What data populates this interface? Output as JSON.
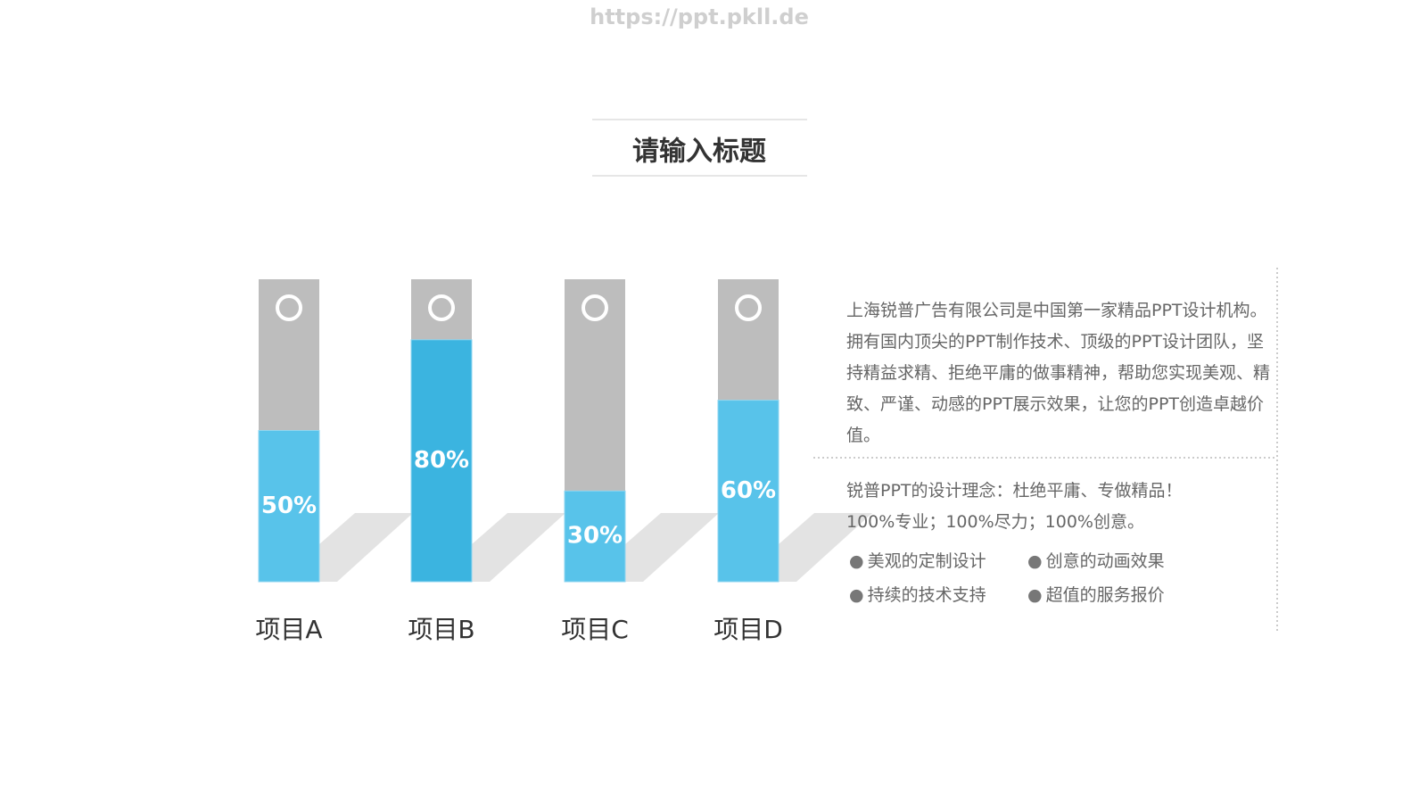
{
  "watermark": "https://ppt.pkll.de",
  "chart_data": {
    "type": "bar",
    "title": "请输入标题",
    "categories": [
      "项目A",
      "项目B",
      "项目C",
      "项目D"
    ],
    "values": [
      50,
      80,
      30,
      60
    ],
    "value_labels": [
      "50%",
      "80%",
      "30%",
      "60%"
    ],
    "colors": [
      "#58c3ea",
      "#3bb4e0",
      "#58c3ea",
      "#58c3ea"
    ],
    "track_color": "#bdbdbd",
    "ylim": [
      0,
      100
    ]
  },
  "text_panel": {
    "paragraph": "上海锐普广告有限公司是中国第一家精品PPT设计机构。拥有国内顶尖的PPT制作技术、顶级的PPT设计团队，坚持精益求精、拒绝平庸的做事精神，帮助您实现美观、精致、严谨、动感的PPT展示效果，让您的PPT创造卓越价值。",
    "tagline": [
      "锐普PPT的设计理念：杜绝平庸、专做精品！",
      "100%专业；100%尽力；100%创意。"
    ],
    "bullets": [
      "美观的定制设计",
      "创意的动画效果",
      "持续的技术支持",
      "超值的服务报价"
    ]
  }
}
